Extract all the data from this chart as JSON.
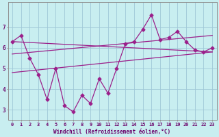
{
  "x": [
    0,
    1,
    2,
    3,
    4,
    5,
    6,
    7,
    8,
    9,
    10,
    11,
    12,
    13,
    14,
    15,
    16,
    17,
    18,
    19,
    20,
    21,
    22,
    23
  ],
  "y_main": [
    6.3,
    6.6,
    5.5,
    4.7,
    3.5,
    5.0,
    3.2,
    2.9,
    3.7,
    3.3,
    4.5,
    3.8,
    5.0,
    6.2,
    6.3,
    6.9,
    7.6,
    6.4,
    6.5,
    6.8,
    6.3,
    5.9,
    5.8,
    6.0
  ],
  "trend1_start": 6.3,
  "trend1_end": 5.8,
  "trend2_start": 5.7,
  "trend2_end": 6.6,
  "trend3_start": 4.8,
  "trend3_end": 5.8,
  "line_color": "#9b1f8a",
  "background_color": "#c8eef0",
  "grid_color": "#a0c8d8",
  "tick_label_color": "#6a006a",
  "xlabel": "Windchill (Refroidissement éolien,°C)",
  "ylim": [
    2.5,
    8.2
  ],
  "xlim": [
    -0.5,
    23.5
  ],
  "yticks": [
    3,
    4,
    5,
    6,
    7
  ],
  "xticks": [
    0,
    1,
    2,
    3,
    4,
    5,
    6,
    7,
    8,
    9,
    10,
    11,
    12,
    13,
    14,
    15,
    16,
    17,
    18,
    19,
    20,
    21,
    22,
    23
  ]
}
